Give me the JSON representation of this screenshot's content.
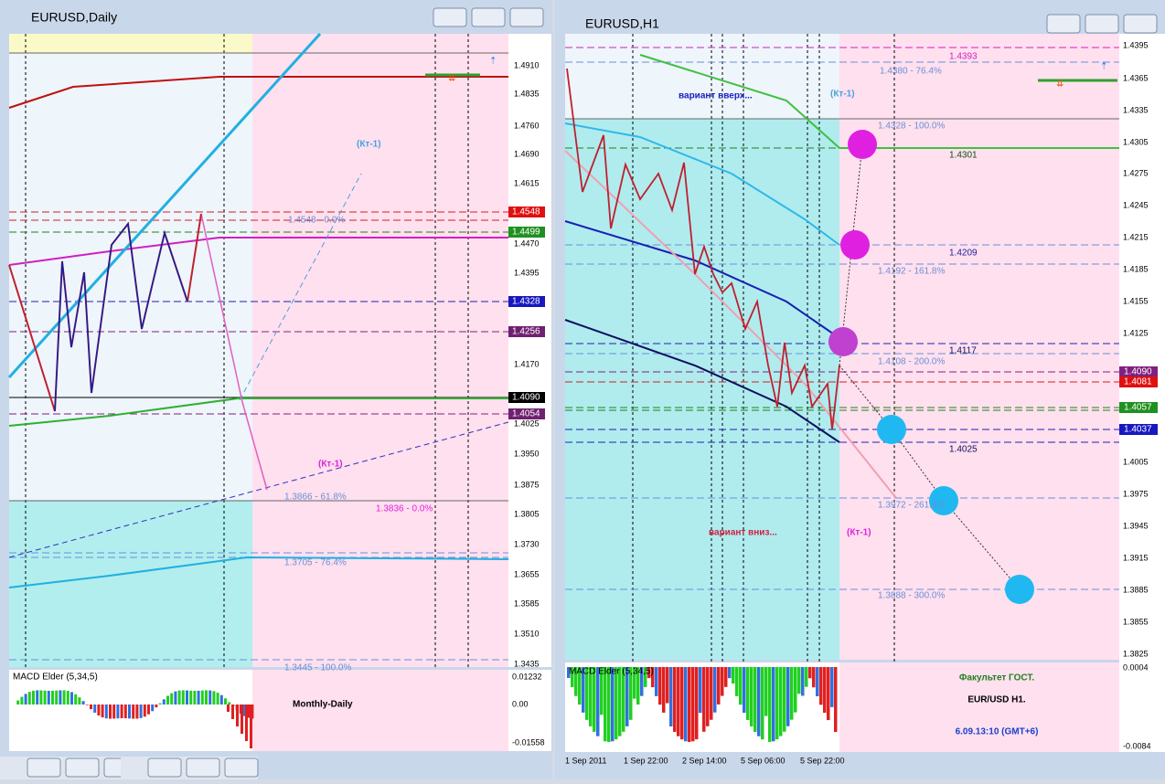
{
  "windows": [
    {
      "title": "EURUSD,Daily",
      "price_axis": [
        "1.4910",
        "1.4835",
        "1.4760",
        "1.4690",
        "1.4615",
        "1.4470",
        "1.4395",
        "1.4170",
        "1.4025",
        "1.3950",
        "1.3875",
        "1.3805",
        "1.3730",
        "1.3655",
        "1.3585",
        "1.3510",
        "1.3435"
      ],
      "price_tags": [
        "1.4548",
        "1.4499",
        "1.4328",
        "1.4256",
        "1.4090",
        "1.4054"
      ],
      "annotations": [
        "(Кт-1)",
        "1.4548 - 0.0%",
        "(Кт-1)",
        "1.3866 - 61.8%",
        "1.3836 - 0.0%",
        "1.3705 - 76.4%",
        "1.3445 - 100.0%"
      ],
      "indicator": {
        "label": "MACD Elder (5,34,5)",
        "axis": [
          "0.01232",
          "0.00",
          "-0.01558"
        ]
      },
      "caption": "Monthly-Daily"
    },
    {
      "title": "EURUSD,H1",
      "price_axis": [
        "1.4395",
        "1.4365",
        "1.4335",
        "1.4305",
        "1.4275",
        "1.4245",
        "1.4215",
        "1.4185",
        "1.4155",
        "1.4125",
        "1.4005",
        "1.3975",
        "1.3945",
        "1.3915",
        "1.3885",
        "1.3855",
        "1.3825"
      ],
      "price_tags": [
        "1.4090",
        "1.4081",
        "1.4057",
        "1.4037"
      ],
      "annotations": [
        "1.4393",
        "1.4380 - 76.4%",
        "вариант вверх...",
        "(Кт-1)",
        "1.4328 - 100.0%",
        "1.4301",
        "1.4209",
        "1.4192 - 161.8%",
        "1.4117",
        "1.4108 - 200.0%",
        "1.4025",
        "1.3972 - 261.8%",
        "вариант вниз...",
        "(Кт-1)",
        "1.3888 - 300.0%"
      ],
      "indicator": {
        "label": "MACD Elder (5,34,5)",
        "axis": [
          "0.0004",
          "-0.0084"
        ]
      },
      "dates": [
        "1 Sep 2011",
        "1 Sep 22:00",
        "2 Sep 14:00",
        "5 Sep 06:00",
        "5 Sep 22:00"
      ],
      "captions": [
        "Факультет ГОСТ.",
        "EUR/USD H1.",
        "6.09.13:10 (GMT+6)"
      ]
    }
  ]
}
